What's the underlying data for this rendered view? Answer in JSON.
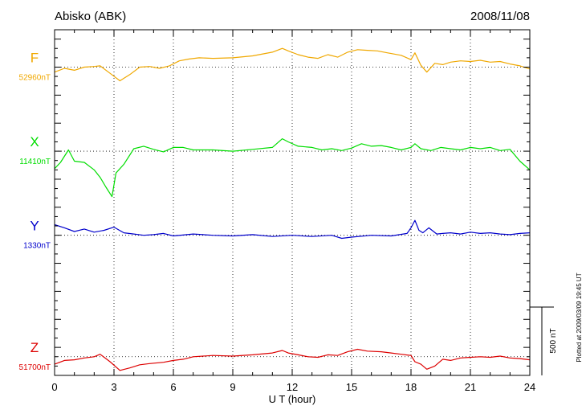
{
  "header": {
    "station": "Abisko (ABK)",
    "date": "2008/11/08"
  },
  "footer": {
    "plotted_note": "Plotted at 2009/03/09 19:45 UT",
    "scale_label": "500 nT"
  },
  "colors": {
    "F": "#f0a800",
    "X": "#00dd00",
    "Y": "#0000cc",
    "Z": "#dd0000",
    "grid": "#000000"
  },
  "chart_data": {
    "type": "line",
    "title": "",
    "xlabel": "U T (hour)",
    "ylabel": "",
    "xlim": [
      0,
      24
    ],
    "x_ticks": [
      0,
      3,
      6,
      9,
      12,
      15,
      18,
      21,
      24
    ],
    "x_tick_labels": [
      "0",
      "3",
      "6",
      "9",
      "12",
      "15",
      "18",
      "21",
      "24"
    ],
    "scale_bar_nT": 500,
    "y_offset_nT": [
      2700,
      1350,
      0,
      -1950
    ],
    "y_gridlines_nT": [
      2700,
      1350,
      0,
      -1950
    ],
    "ylim_nT": [
      -2250,
      3300
    ],
    "series": [
      {
        "name": "F",
        "baseline_label": "52960nT",
        "x": [
          0,
          0.5,
          1,
          1.5,
          2,
          2.3,
          2.8,
          3.3,
          3.8,
          4.3,
          4.8,
          5.3,
          5.8,
          6.3,
          6.8,
          7.3,
          8,
          9,
          10,
          11,
          11.5,
          11.8,
          12.3,
          12.8,
          13.3,
          13.8,
          14.3,
          14.8,
          15.3,
          15.8,
          16.3,
          16.8,
          17.5,
          18,
          18.2,
          18.5,
          18.8,
          19.2,
          19.6,
          20,
          20.5,
          21,
          21.5,
          22,
          22.5,
          23,
          23.5,
          24
        ],
        "values": [
          -80,
          -20,
          -50,
          0,
          10,
          20,
          -100,
          -220,
          -120,
          0,
          10,
          -20,
          20,
          100,
          130,
          150,
          140,
          150,
          180,
          240,
          300,
          260,
          200,
          160,
          140,
          200,
          160,
          240,
          280,
          270,
          260,
          230,
          190,
          120,
          230,
          30,
          -80,
          60,
          40,
          80,
          100,
          90,
          110,
          80,
          90,
          50,
          20,
          -30
        ]
      },
      {
        "name": "X",
        "baseline_label": "11410nT",
        "x": [
          0,
          0.3,
          0.7,
          1,
          1.5,
          2,
          2.3,
          2.6,
          2.9,
          3.1,
          3.5,
          4,
          4.5,
          5,
          5.5,
          6,
          6.5,
          7,
          8,
          9,
          10,
          11,
          11.5,
          11.8,
          12.3,
          13,
          13.5,
          14,
          14.5,
          15,
          15.5,
          16,
          16.5,
          17,
          17.5,
          18,
          18.2,
          18.5,
          19,
          19.5,
          20,
          20.5,
          21,
          21.5,
          22,
          22.5,
          23,
          23.5,
          24
        ],
        "values": [
          -280,
          -180,
          20,
          -160,
          -180,
          -300,
          -420,
          -580,
          -730,
          -350,
          -210,
          40,
          80,
          30,
          -10,
          60,
          60,
          20,
          20,
          0,
          30,
          60,
          200,
          150,
          80,
          60,
          20,
          40,
          10,
          50,
          120,
          80,
          90,
          60,
          20,
          60,
          120,
          40,
          10,
          60,
          40,
          20,
          60,
          40,
          60,
          10,
          30,
          -160,
          -300
        ]
      },
      {
        "name": "Y",
        "baseline_label": "1330nT",
        "x": [
          0,
          0.5,
          1,
          1.5,
          2,
          2.5,
          3,
          3.5,
          4,
          4.5,
          5,
          5.5,
          6,
          7,
          8,
          9,
          10,
          11,
          12,
          13,
          14,
          14.5,
          15,
          16,
          17,
          17.8,
          18,
          18.2,
          18.4,
          18.6,
          18.9,
          19.3,
          19.6,
          20,
          20.5,
          21,
          21.5,
          22,
          22.5,
          23,
          23.5,
          24
        ],
        "values": [
          170,
          120,
          60,
          100,
          50,
          80,
          130,
          40,
          20,
          0,
          10,
          30,
          -10,
          20,
          0,
          -10,
          10,
          -20,
          0,
          -20,
          0,
          -50,
          -30,
          0,
          -10,
          30,
          120,
          240,
          80,
          40,
          120,
          20,
          30,
          40,
          20,
          50,
          30,
          40,
          20,
          10,
          30,
          40
        ]
      },
      {
        "name": "Z",
        "baseline_label": "51700nT",
        "x": [
          0,
          0.5,
          1,
          1.5,
          2,
          2.3,
          2.8,
          3.3,
          3.8,
          4.3,
          4.8,
          5.5,
          6,
          6.5,
          7,
          8,
          9,
          10,
          11,
          11.5,
          11.8,
          12.3,
          12.8,
          13.3,
          13.8,
          14.3,
          14.8,
          15.3,
          15.8,
          16.5,
          17,
          17.5,
          18,
          18.2,
          18.5,
          18.8,
          19.2,
          19.6,
          20,
          20.5,
          21,
          21.5,
          22,
          22.5,
          23,
          23.5,
          24
        ],
        "values": [
          -120,
          -60,
          -50,
          -20,
          0,
          40,
          -80,
          -220,
          -180,
          -130,
          -110,
          -90,
          -60,
          -40,
          0,
          20,
          10,
          30,
          60,
          100,
          60,
          30,
          0,
          -10,
          30,
          20,
          80,
          120,
          90,
          80,
          60,
          40,
          20,
          -80,
          -120,
          -200,
          -150,
          -40,
          -60,
          -20,
          -10,
          0,
          -10,
          10,
          -20,
          -30,
          -50
        ]
      }
    ]
  }
}
